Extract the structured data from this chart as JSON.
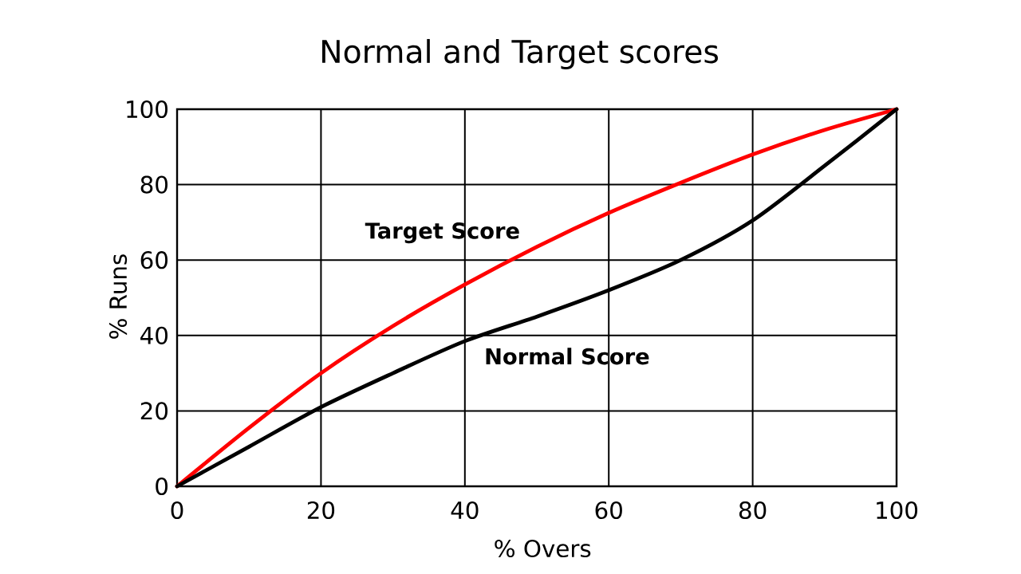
{
  "chart_data": {
    "type": "line",
    "title": "Normal and Target scores",
    "xlabel": "% Overs",
    "ylabel": "% Runs",
    "x": [
      0,
      10,
      20,
      30,
      40,
      50,
      60,
      70,
      80,
      90,
      100
    ],
    "series": [
      {
        "name": "Target Score",
        "color": "#ff0000",
        "values": [
          0,
          15.5,
          30,
          42.5,
          53.5,
          63.5,
          72.5,
          80.5,
          88,
          94.5,
          100
        ]
      },
      {
        "name": "Normal Score",
        "color": "#000000",
        "values": [
          0,
          10.5,
          21,
          30,
          38.5,
          45,
          52,
          60,
          70.5,
          85,
          100
        ]
      }
    ],
    "xlim": [
      0,
      100
    ],
    "ylim": [
      0,
      100
    ],
    "xticks": [
      0,
      20,
      40,
      60,
      80,
      100
    ],
    "yticks": [
      0,
      20,
      40,
      60,
      80,
      100
    ],
    "grid": true,
    "marker": "none",
    "line_style": "solid"
  }
}
